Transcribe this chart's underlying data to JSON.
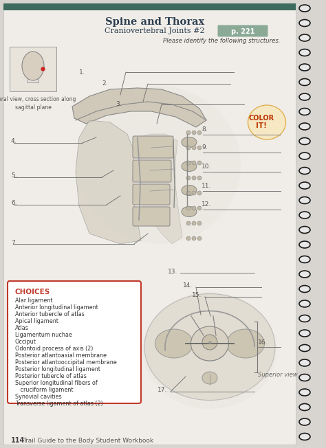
{
  "title": "Spine and Thorax",
  "subtitle": "Craniovertebral Joints #2",
  "page_ref": "p. 221",
  "instruction": "Please identify the following structures.",
  "lateral_view_label": "Lateral view, cross section along\nsagittal plane",
  "superior_view_label": "Superior view",
  "choices_title": "CHOICES",
  "choices": [
    "Alar ligament",
    "Anterior longitudinal ligament",
    "Anterior tubercle of atlas",
    "Apical ligament",
    "Atlas",
    "Ligamentum nuchae",
    "Occiput",
    "Odontoid process of axis (2)",
    "Posterior atlantoaxial membrane",
    "Posterior atlantooccipital membrane",
    "Posterior longitudinal ligament",
    "Posterior tubercle of atlas",
    "Superior longitudinal fibers of",
    "   cruciform ligament",
    "Synovial cavities",
    "Transverse ligament of atlas (2)"
  ],
  "footer_page": "114",
  "footer_text": "Trail Guide to the Body Student Workbook",
  "bg_color": "#d8d5d0",
  "page_color": "#f0ede8",
  "spiral_color": "#1a1a1a",
  "choices_border_color": "#c0392b",
  "title_color": "#2c3e50",
  "number_color": "#555555",
  "line_color": "#777777",
  "page_ref_bg": "#8aaa96",
  "top_bar_color": "#3d6b5e"
}
